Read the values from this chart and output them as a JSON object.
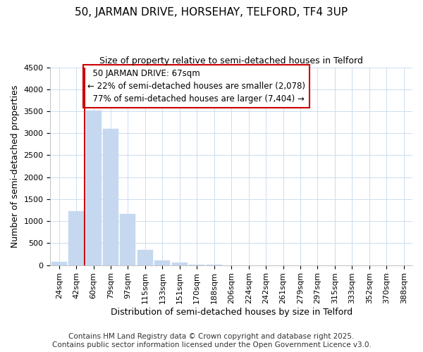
{
  "title": "50, JARMAN DRIVE, HORSEHAY, TELFORD, TF4 3UP",
  "subtitle": "Size of property relative to semi-detached houses in Telford",
  "xlabel": "Distribution of semi-detached houses by size in Telford",
  "ylabel": "Number of semi-detached properties",
  "categories": [
    "24sqm",
    "42sqm",
    "60sqm",
    "79sqm",
    "97sqm",
    "115sqm",
    "133sqm",
    "151sqm",
    "170sqm",
    "188sqm",
    "206sqm",
    "224sqm",
    "242sqm",
    "261sqm",
    "279sqm",
    "297sqm",
    "315sqm",
    "333sqm",
    "352sqm",
    "370sqm",
    "388sqm"
  ],
  "values": [
    75,
    1220,
    3520,
    3100,
    1160,
    350,
    100,
    50,
    5,
    2,
    1,
    1,
    0,
    0,
    0,
    0,
    0,
    0,
    0,
    0,
    0
  ],
  "bar_color": "#c5d8f0",
  "bar_edge_color": "#c5d8f0",
  "ylim": [
    0,
    4500
  ],
  "property_label": "50 JARMAN DRIVE: 67sqm",
  "pct_smaller": 22,
  "pct_larger": 77,
  "count_smaller": 2078,
  "count_larger": 7404,
  "marker_bin_index": 2,
  "annotation_line_color": "#cc0000",
  "footer_line1": "Contains HM Land Registry data © Crown copyright and database right 2025.",
  "footer_line2": "Contains public sector information licensed under the Open Government Licence v3.0.",
  "background_color": "#ffffff",
  "plot_background_color": "#ffffff",
  "grid_color": "#ccddf0",
  "title_fontsize": 11,
  "subtitle_fontsize": 9,
  "xlabel_fontsize": 9,
  "ylabel_fontsize": 9,
  "tick_fontsize": 8,
  "annotation_fontsize": 8.5,
  "footer_fontsize": 7.5
}
